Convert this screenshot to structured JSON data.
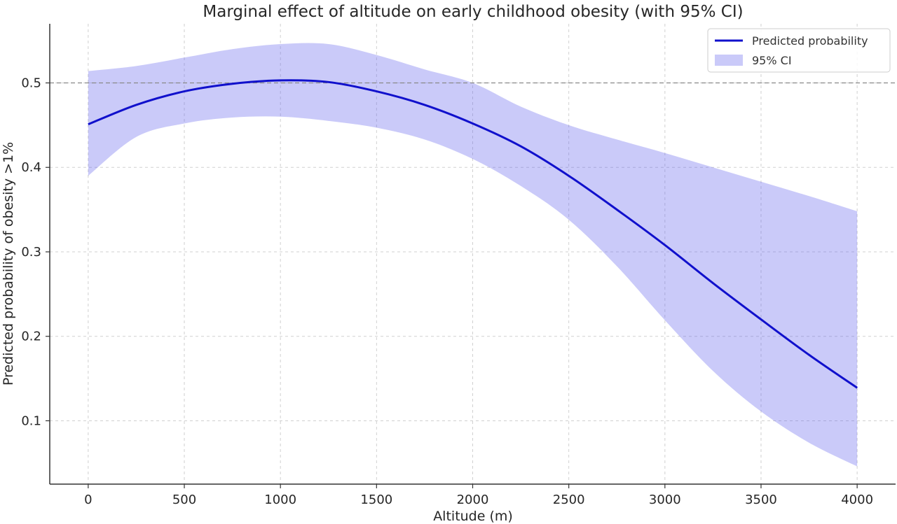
{
  "chart_data": {
    "type": "line",
    "title": "Marginal effect of altitude on early childhood obesity (with 95% CI)",
    "xlabel": "Altitude (m)",
    "ylabel": "Predicted probability of obesity >1%",
    "xlim": [
      -200,
      4200
    ],
    "ylim": [
      0.025,
      0.57
    ],
    "xticks": [
      0,
      500,
      1000,
      1500,
      2000,
      2500,
      3000,
      3500,
      4000
    ],
    "yticks": [
      0.1,
      0.2,
      0.3,
      0.4,
      0.5
    ],
    "grid": true,
    "reference_line": {
      "y": 0.5,
      "style": "dashed"
    },
    "legend": {
      "position": "top-right",
      "entries": [
        "Predicted probability",
        "95% CI"
      ]
    },
    "x": [
      0,
      250,
      500,
      750,
      1000,
      1250,
      1500,
      1750,
      2000,
      2250,
      2500,
      2750,
      3000,
      3250,
      3500,
      3750,
      4000
    ],
    "series": [
      {
        "name": "Predicted probability",
        "color": "#1010cc",
        "values": [
          0.451,
          0.474,
          0.49,
          0.499,
          0.503,
          0.501,
          0.49,
          0.474,
          0.452,
          0.425,
          0.39,
          0.35,
          0.308,
          0.263,
          0.22,
          0.178,
          0.139
        ]
      },
      {
        "name": "95% CI",
        "type": "band",
        "color": "#6666ee",
        "lower": [
          0.39,
          0.436,
          0.452,
          0.459,
          0.46,
          0.455,
          0.447,
          0.433,
          0.41,
          0.378,
          0.338,
          0.283,
          0.219,
          0.159,
          0.111,
          0.074,
          0.046
        ],
        "upper": [
          0.514,
          0.52,
          0.53,
          0.54,
          0.546,
          0.546,
          0.533,
          0.516,
          0.5,
          0.472,
          0.45,
          0.433,
          0.417,
          0.4,
          0.383,
          0.366,
          0.348
        ]
      }
    ]
  }
}
